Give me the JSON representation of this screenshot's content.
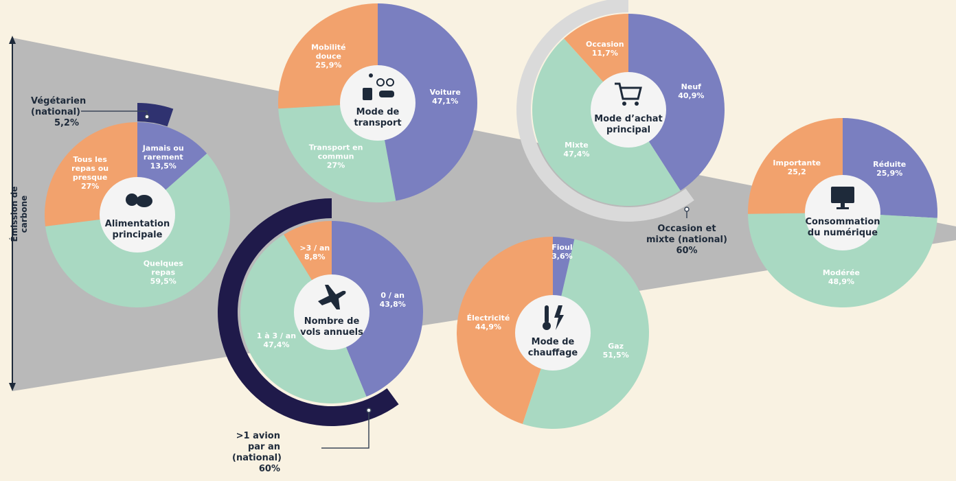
{
  "axis_label": "Émission de carbone",
  "chart_data": [
    {
      "type": "pie",
      "title": "Alimentation principale",
      "categories": [
        "Jamais ou rarement",
        "Quelques repas",
        "Tous les repas ou presque"
      ],
      "values": [
        13.5,
        59.5,
        27
      ],
      "value_labels": [
        "13,5%",
        "59,5%",
        "27%"
      ],
      "colors": [
        "#7a7fc0",
        "#a9d9c2",
        "#f2a26d"
      ],
      "reference": {
        "label": "Végétarien (national)",
        "value": 5.2,
        "value_label": "5,2%",
        "color": "#2f3270",
        "clockwise": true
      }
    },
    {
      "type": "pie",
      "title": "Mode de transport",
      "categories": [
        "Voiture",
        "Transport en commun",
        "Mobilité douce"
      ],
      "values": [
        47.1,
        27,
        25.9
      ],
      "value_labels": [
        "47,1%",
        "27%",
        "25,9%"
      ],
      "colors": [
        "#7a7fc0",
        "#a9d9c2",
        "#f2a26d"
      ]
    },
    {
      "type": "pie",
      "title": "Mode d’achat principal",
      "categories": [
        "Neuf",
        "Mixte",
        "Occasion"
      ],
      "values": [
        40.9,
        47.4,
        11.7
      ],
      "value_labels": [
        "40,9%",
        "47,4%",
        "11,7%"
      ],
      "colors": [
        "#7a7fc0",
        "#a9d9c2",
        "#f2a26d"
      ],
      "reference": {
        "label": "Occasion et mixte (national)",
        "value": 60,
        "value_label": "60%",
        "color": "#dadada",
        "clockwise": false
      }
    },
    {
      "type": "pie",
      "title": "Nombre de vols annuels",
      "categories": [
        "0 / an",
        "1 à 3 / an",
        ">3 / an"
      ],
      "values": [
        43.8,
        47.4,
        8.8
      ],
      "value_labels": [
        "43,8%",
        "47,4%",
        "8,8%"
      ],
      "colors": [
        "#7a7fc0",
        "#a9d9c2",
        "#f2a26d"
      ],
      "reference": {
        "label": ">1 avion par an (national)",
        "value": 60,
        "value_label": "60%",
        "color": "#1f1a4a",
        "clockwise": false
      }
    },
    {
      "type": "pie",
      "title": "Mode de chauffage",
      "categories": [
        "Fioul",
        "Gaz",
        "Électricité"
      ],
      "values": [
        3.6,
        51.5,
        44.9
      ],
      "value_labels": [
        "3,6%",
        "51,5%",
        "44,9%"
      ],
      "colors": [
        "#7a7fc0",
        "#a9d9c2",
        "#f2a26d"
      ]
    },
    {
      "type": "pie",
      "title": "Consommation du numérique",
      "categories": [
        "Réduite",
        "Modérée",
        "Importante"
      ],
      "values": [
        25.9,
        48.9,
        25.2
      ],
      "value_labels": [
        "25,9%",
        "48,9%",
        "25,2"
      ],
      "colors": [
        "#7a7fc0",
        "#a9d9c2",
        "#f2a26d"
      ]
    }
  ]
}
